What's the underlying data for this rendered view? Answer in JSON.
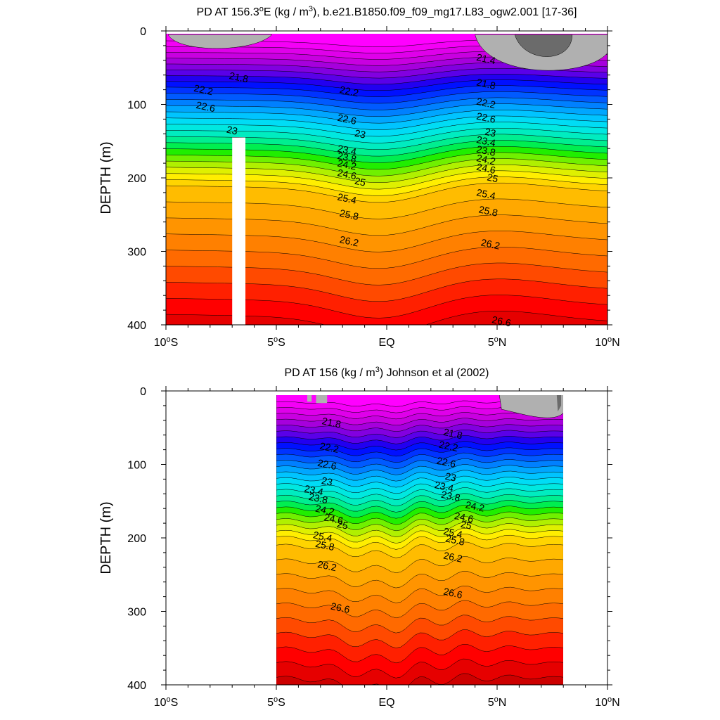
{
  "chart_data": [
    {
      "type": "contour",
      "title": "PD AT 156.3°E (kg / m³), b.e21.B1850.f09_f09_mg17.L83_ogw2.001 [17-36]",
      "title_parts": {
        "a": "PD AT 156.3",
        "b": "o",
        "c": "E (kg / m",
        "d": "3",
        "e": "), b.e21.B1850.f09_f09_mg17.L83_ogw2.001 [17-36]"
      },
      "ylabel": "DEPTH (m)",
      "xlim": [
        -10,
        10
      ],
      "ylim": [
        0,
        400
      ],
      "data_xrange": [
        -10,
        10
      ],
      "y_ticks": [
        0,
        100,
        200,
        300,
        400
      ],
      "x_ticks": [
        {
          "value": -10,
          "num": "10",
          "sup": "o",
          "hemi": "S"
        },
        {
          "value": -5,
          "num": "5",
          "sup": "o",
          "hemi": "S"
        },
        {
          "value": 0,
          "num": "EQ",
          "sup": "",
          "hemi": ""
        },
        {
          "value": 5,
          "num": "5",
          "sup": "o",
          "hemi": "N"
        },
        {
          "value": 10,
          "num": "10",
          "sup": "o",
          "hemi": "N"
        }
      ],
      "gap": {
        "x": [
          -7,
          -6.4
        ],
        "y": [
          145,
          400
        ]
      },
      "contour_labels": [
        {
          "x": -6.7,
          "y": 63,
          "text": "21.8"
        },
        {
          "x": -8.3,
          "y": 80,
          "text": "22.2"
        },
        {
          "x": -8.2,
          "y": 103,
          "text": "22.6"
        },
        {
          "x": -7.0,
          "y": 135,
          "text": "23"
        },
        {
          "x": -1.7,
          "y": 82,
          "text": "22.2"
        },
        {
          "x": -1.8,
          "y": 120,
          "text": "22.6"
        },
        {
          "x": -1.2,
          "y": 140,
          "text": "23"
        },
        {
          "x": -1.8,
          "y": 162,
          "text": "23.4"
        },
        {
          "x": -1.8,
          "y": 172,
          "text": "23.8"
        },
        {
          "x": -1.8,
          "y": 182,
          "text": "24.2"
        },
        {
          "x": -1.8,
          "y": 195,
          "text": "24.6"
        },
        {
          "x": -1.2,
          "y": 205,
          "text": "25"
        },
        {
          "x": -1.8,
          "y": 228,
          "text": "25.4"
        },
        {
          "x": -1.7,
          "y": 250,
          "text": "25.8"
        },
        {
          "x": -1.7,
          "y": 286,
          "text": "26.2"
        },
        {
          "x": 4.5,
          "y": 38,
          "text": "21.4"
        },
        {
          "x": 4.5,
          "y": 72,
          "text": "21.8"
        },
        {
          "x": 4.5,
          "y": 98,
          "text": "22.2"
        },
        {
          "x": 4.5,
          "y": 118,
          "text": "22.6"
        },
        {
          "x": 4.7,
          "y": 138,
          "text": "23"
        },
        {
          "x": 4.5,
          "y": 150,
          "text": "23.4"
        },
        {
          "x": 4.5,
          "y": 163,
          "text": "23.8"
        },
        {
          "x": 4.5,
          "y": 175,
          "text": "24.2"
        },
        {
          "x": 4.5,
          "y": 187,
          "text": "24.6"
        },
        {
          "x": 4.8,
          "y": 200,
          "text": "25"
        },
        {
          "x": 4.5,
          "y": 222,
          "text": "25.4"
        },
        {
          "x": 4.6,
          "y": 245,
          "text": "25.8"
        },
        {
          "x": 4.7,
          "y": 290,
          "text": "26.2"
        },
        {
          "x": 5.2,
          "y": 395,
          "text": "26.6"
        }
      ]
    },
    {
      "type": "contour",
      "title": "PD AT 156 (kg / m³) Johnson et al (2002)",
      "title_parts": {
        "a": "PD AT 156 (kg / m",
        "b": "3",
        "c": ") Johnson et al (2002)"
      },
      "ylabel": "DEPTH (m)",
      "xlim": [
        -10,
        10
      ],
      "ylim": [
        0,
        400
      ],
      "data_xrange": [
        -5,
        8
      ],
      "y_ticks": [
        0,
        100,
        200,
        300,
        400
      ],
      "x_ticks": [
        {
          "value": -10,
          "num": "10",
          "sup": "o",
          "hemi": "S"
        },
        {
          "value": -5,
          "num": "5",
          "sup": "o",
          "hemi": "S"
        },
        {
          "value": 0,
          "num": "EQ",
          "sup": "",
          "hemi": ""
        },
        {
          "value": 5,
          "num": "5",
          "sup": "o",
          "hemi": "N"
        },
        {
          "value": 10,
          "num": "10",
          "sup": "o",
          "hemi": "N"
        }
      ],
      "contour_labels": [
        {
          "x": -2.5,
          "y": 43,
          "text": "21.8"
        },
        {
          "x": -2.6,
          "y": 77,
          "text": "22.2"
        },
        {
          "x": -2.7,
          "y": 100,
          "text": "22.6"
        },
        {
          "x": -2.7,
          "y": 123,
          "text": "23"
        },
        {
          "x": -3.3,
          "y": 135,
          "text": "23.4"
        },
        {
          "x": -3.1,
          "y": 146,
          "text": "23.8"
        },
        {
          "x": -2.8,
          "y": 162,
          "text": "24.2"
        },
        {
          "x": -2.4,
          "y": 174,
          "text": "24.6"
        },
        {
          "x": -2.0,
          "y": 182,
          "text": "25"
        },
        {
          "x": -2.9,
          "y": 198,
          "text": "25.4"
        },
        {
          "x": -2.8,
          "y": 210,
          "text": "25.8"
        },
        {
          "x": -2.7,
          "y": 238,
          "text": "26.2"
        },
        {
          "x": -2.1,
          "y": 295,
          "text": "26.6"
        },
        {
          "x": 3.0,
          "y": 58,
          "text": "21.8"
        },
        {
          "x": 2.8,
          "y": 75,
          "text": "22.2"
        },
        {
          "x": 2.7,
          "y": 97,
          "text": "22.6"
        },
        {
          "x": 2.9,
          "y": 117,
          "text": "23"
        },
        {
          "x": 2.6,
          "y": 130,
          "text": "23.4"
        },
        {
          "x": 2.9,
          "y": 143,
          "text": "23.8"
        },
        {
          "x": 4.0,
          "y": 157,
          "text": "24.2"
        },
        {
          "x": 3.5,
          "y": 172,
          "text": "24.6"
        },
        {
          "x": 3.6,
          "y": 182,
          "text": "25"
        },
        {
          "x": 3.0,
          "y": 193,
          "text": "25.4"
        },
        {
          "x": 3.1,
          "y": 203,
          "text": "25.8"
        },
        {
          "x": 3.0,
          "y": 226,
          "text": "26.2"
        },
        {
          "x": 3.0,
          "y": 275,
          "text": "26.6"
        }
      ]
    }
  ],
  "palette": {
    "gray": "#b0b0b0",
    "dark_gray": "#6b6b6b",
    "gap": "#ffffff",
    "levels": [
      "#ff00ff",
      "#f400f6",
      "#df00ea",
      "#c800e0",
      "#a600dc",
      "#8200e0",
      "#5a00e8",
      "#2200f0",
      "#0010ff",
      "#0033ff",
      "#005aff",
      "#0080ff",
      "#00a6ff",
      "#00c4ff",
      "#00dcf5",
      "#00e8e0",
      "#00ecc0",
      "#00ee90",
      "#00ee50",
      "#20ee00",
      "#70f000",
      "#b0f000",
      "#dff000",
      "#ffee00",
      "#ffd400",
      "#ffbc00",
      "#ffa800",
      "#ff9400",
      "#ff8000",
      "#ff6a00",
      "#ff4a00",
      "#ff2000",
      "#ff0000",
      "#e60000",
      "#cc0000"
    ]
  }
}
